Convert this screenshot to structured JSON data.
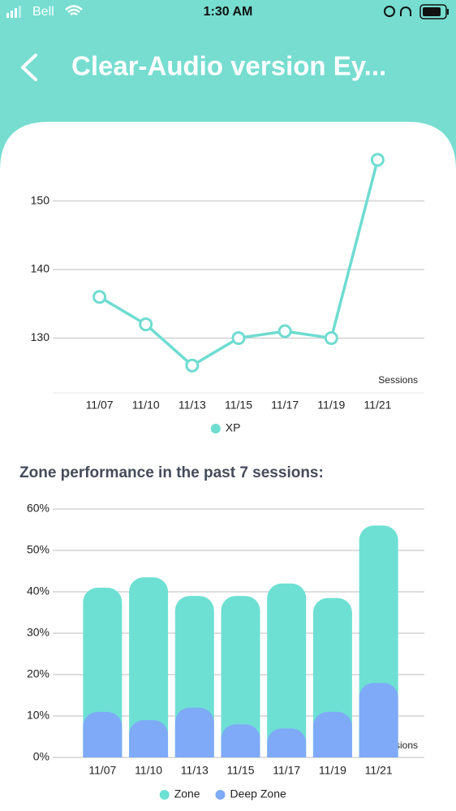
{
  "status_bar": {
    "carrier": "Bell",
    "time": "1:30 AM"
  },
  "header": {
    "title": "Clear-Audio version  Ey..."
  },
  "chart_data": [
    {
      "type": "line",
      "x_label": "Sessions",
      "categories": [
        "11/07",
        "11/10",
        "11/13",
        "11/15",
        "11/17",
        "11/19",
        "11/21"
      ],
      "series": [
        {
          "name": "XP",
          "color": "#6edcd1",
          "values": [
            136,
            132,
            126,
            130,
            131,
            130,
            156
          ]
        }
      ],
      "ylim": [
        122,
        158
      ],
      "yticks": [
        130,
        140,
        150
      ],
      "grid": true,
      "legend": "bottom"
    },
    {
      "type": "bar",
      "title": "Zone performance in the past 7 sessions:",
      "x_label": "Sessions",
      "categories": [
        "11/07",
        "11/10",
        "11/13",
        "11/15",
        "11/17",
        "11/19",
        "11/21"
      ],
      "series": [
        {
          "name": "Zone",
          "color": "#6de0d3",
          "values": [
            41,
            43.5,
            39,
            39,
            42,
            38.5,
            56
          ]
        },
        {
          "name": "Deep Zone",
          "color": "#7eaaf7",
          "values": [
            11,
            9,
            12,
            8,
            7,
            11,
            18
          ]
        }
      ],
      "ylim": [
        0,
        60
      ],
      "yticks": [
        {
          "value": 0,
          "label": "0%"
        },
        {
          "value": 10,
          "label": "10%"
        },
        {
          "value": 20,
          "label": "20%"
        },
        {
          "value": 30,
          "label": "30%"
        },
        {
          "value": 40,
          "label": "40%"
        },
        {
          "value": 50,
          "label": "50%"
        },
        {
          "value": 60,
          "label": "60%"
        }
      ],
      "grid": true,
      "legend": "bottom"
    }
  ]
}
